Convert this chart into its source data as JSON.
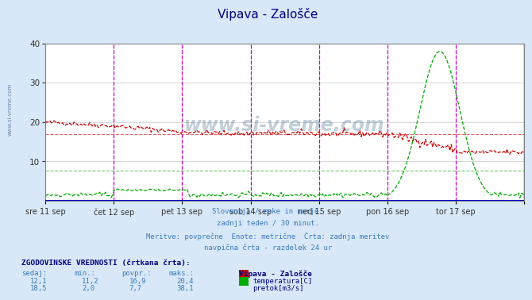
{
  "title": "Vipava - Zalošče",
  "title_color": "#000080",
  "bg_color": "#d8e8f8",
  "plot_bg_color": "#ffffff",
  "x_labels": [
    "sre 11 sep",
    "čet 12 sep",
    "pet 13 sep",
    "sob 14 sep",
    "ned 15 sep",
    "pon 16 sep",
    "tor 17 sep"
  ],
  "ylim": [
    0,
    40
  ],
  "yticks": [
    10,
    20,
    30,
    40
  ],
  "temp_color": "#cc0000",
  "flow_color": "#00aa00",
  "temp_avg": 16.9,
  "flow_avg": 7.7,
  "temp_min": 11.2,
  "temp_max": 20.4,
  "temp_sedaj": 12.1,
  "flow_min": 2.0,
  "flow_max": 38.1,
  "flow_sedaj": 18.5,
  "flow_povpr": 7.7,
  "subtitle_lines": [
    "Slovenija / reke in morje.",
    "zadnji teden / 30 minut.",
    "Meritve: povprečne  Enote: metrične  Črta: zadnja meritev",
    "navpična črta - razdelek 24 ur"
  ],
  "legend_title": "Vipava - Zalošče",
  "grid_color": "#c8c8c8",
  "vline_color": "#cc00cc",
  "watermark": "www.si-vreme.com",
  "sidebar_text": "www.si-vreme.com"
}
